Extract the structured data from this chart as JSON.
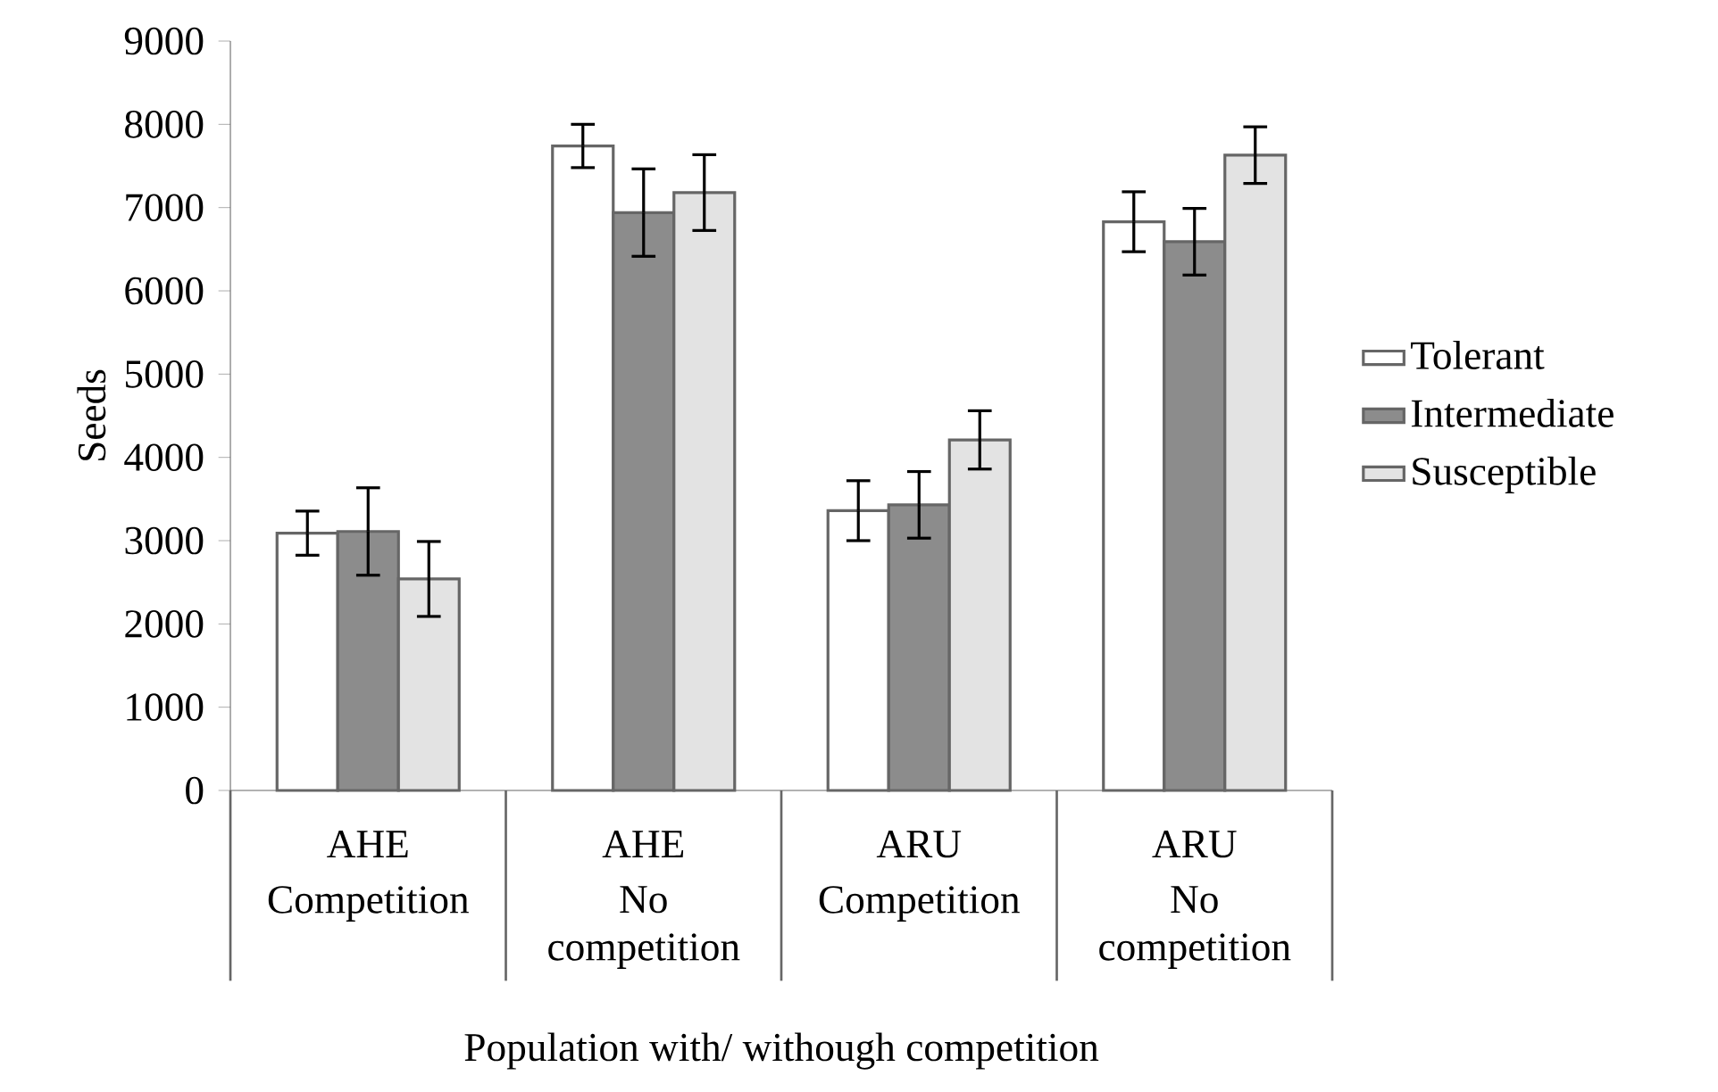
{
  "chart_data": {
    "type": "bar",
    "xlabel": "Population with/ withough competition",
    "ylabel": "Seeds",
    "categories": [
      "AHE",
      "AHE",
      "ARU",
      "ARU"
    ],
    "annotations": [
      "Competition",
      "No competition",
      "Competition",
      "No competition"
    ],
    "series": [
      {
        "name": "Tolerant",
        "color": "#ffffff",
        "values": [
          3090,
          7740,
          3360,
          6830
        ],
        "errors": [
          265,
          260,
          360,
          360
        ]
      },
      {
        "name": "Intermediate",
        "color": "#8c8c8c",
        "values": [
          3110,
          6940,
          3430,
          6590
        ],
        "errors": [
          525,
          525,
          400,
          400
        ]
      },
      {
        "name": "Susceptible",
        "color": "#e3e3e3",
        "values": [
          2540,
          7180,
          4210,
          7630
        ],
        "errors": [
          450,
          455,
          350,
          340
        ]
      }
    ],
    "ylim": [
      0,
      9000
    ],
    "yticks": [
      0,
      1000,
      2000,
      3000,
      4000,
      5000,
      6000,
      7000,
      8000,
      9000
    ],
    "grid": false,
    "legend": "right"
  }
}
